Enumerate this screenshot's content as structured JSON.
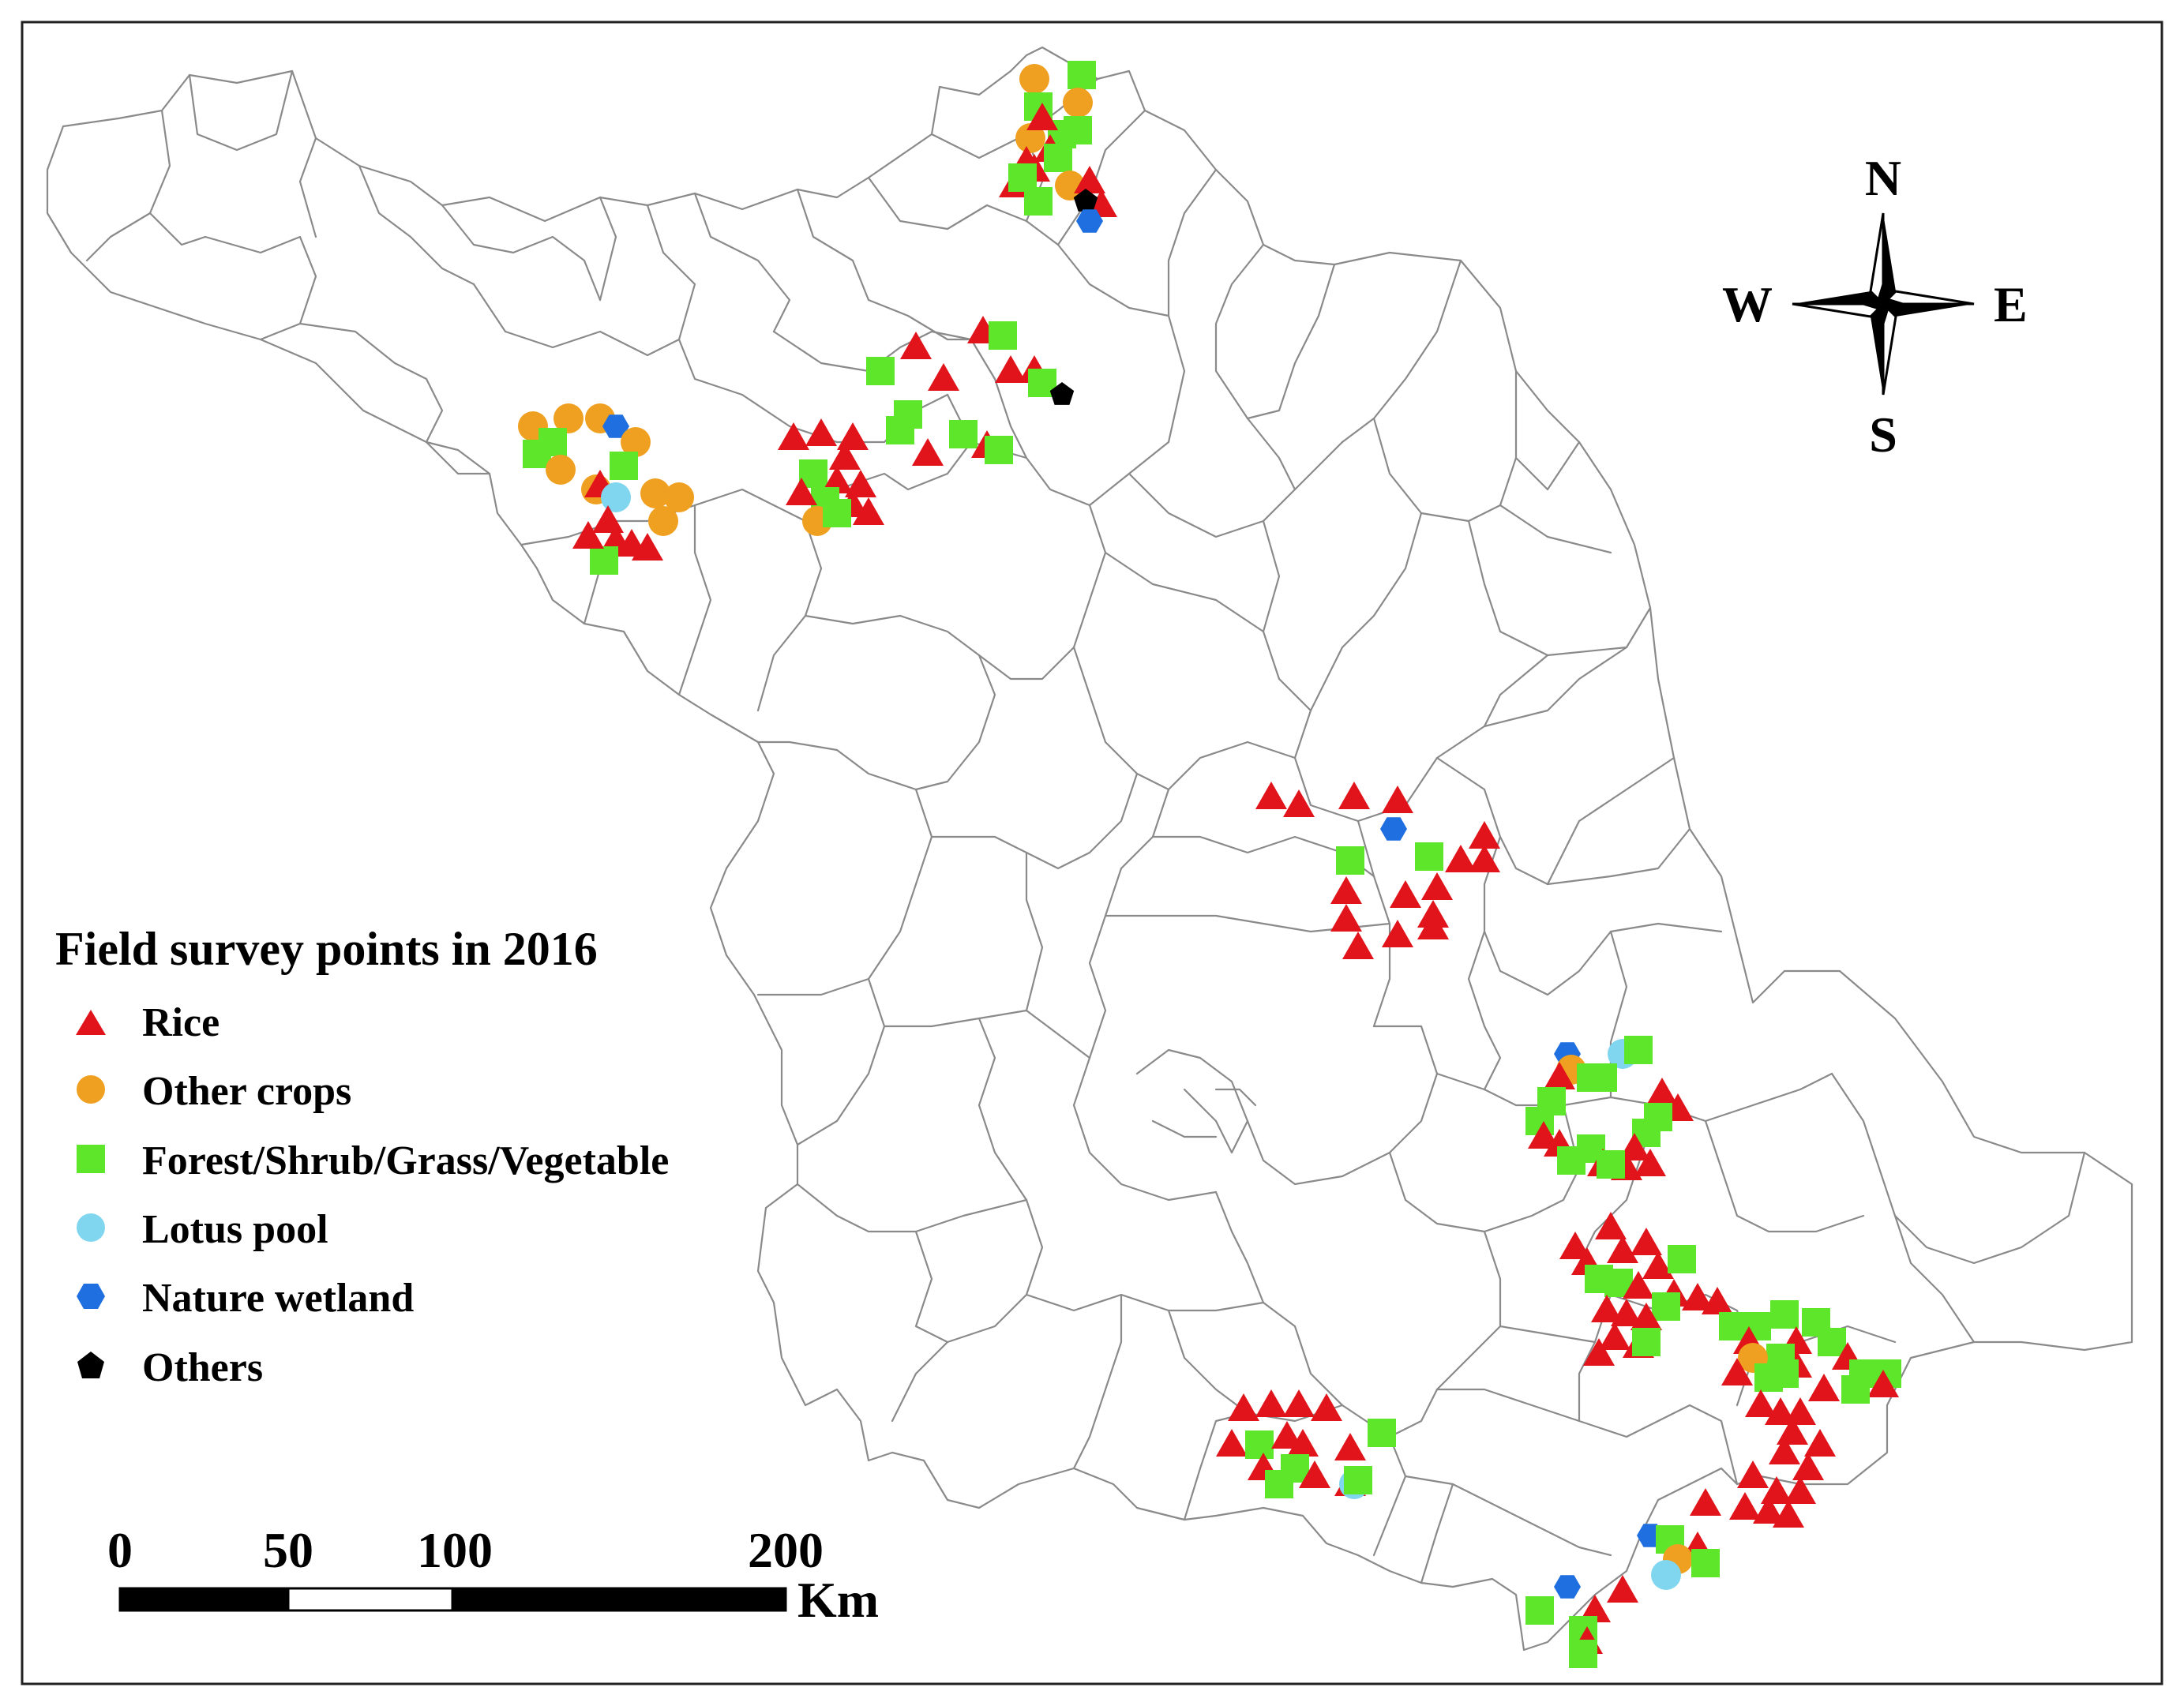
{
  "legend": {
    "title": "Field survey points in 2016",
    "items": [
      {
        "key": "rice",
        "label": "Rice",
        "shape": "triangle",
        "color": "#e0141a"
      },
      {
        "key": "other",
        "label": "Other crops",
        "shape": "circle",
        "color": "#f0a020"
      },
      {
        "key": "forest",
        "label": "Forest/Shrub/Grass/Vegetable",
        "shape": "square",
        "color": "#5ee62a"
      },
      {
        "key": "lotus",
        "label": "Lotus pool",
        "shape": "circle",
        "color": "#7fd6ee"
      },
      {
        "key": "wetland",
        "label": "Nature wetland",
        "shape": "hexagon",
        "color": "#1f6fe0"
      },
      {
        "key": "others",
        "label": "Others",
        "shape": "pentagon",
        "color": "#000000"
      }
    ]
  },
  "compass": {
    "north": "N",
    "south": "S",
    "east": "E",
    "west": "W"
  },
  "scale_bar": {
    "ticks": [
      "0",
      "50",
      "100",
      "200"
    ],
    "unit": "Km"
  }
}
